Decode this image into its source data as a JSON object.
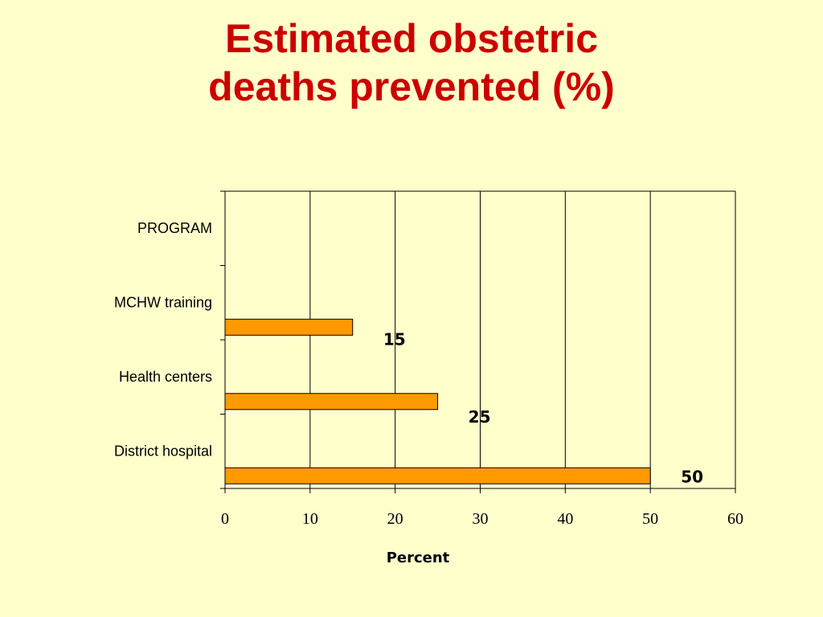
{
  "title_line1": "Estimated obstetric",
  "title_line2": "deaths prevented  (%)",
  "colors": {
    "background": "#ffffcc",
    "title": "#cc0000",
    "bar_fill": "#ff9900",
    "bar_stroke": "#000000"
  },
  "chart_data": {
    "type": "bar",
    "orientation": "horizontal",
    "categories": [
      "PROGRAM",
      "MCHW training",
      "Health centers",
      "District hospital"
    ],
    "values": [
      null,
      15,
      25,
      50
    ],
    "data_labels": [
      "",
      "15",
      "25",
      "50"
    ],
    "xlabel": "Percent",
    "ylabel": "",
    "xlim": [
      0,
      60
    ],
    "xticks": [
      0,
      10,
      20,
      30,
      40,
      50,
      60
    ],
    "grid": "vertical",
    "legend": "none"
  }
}
